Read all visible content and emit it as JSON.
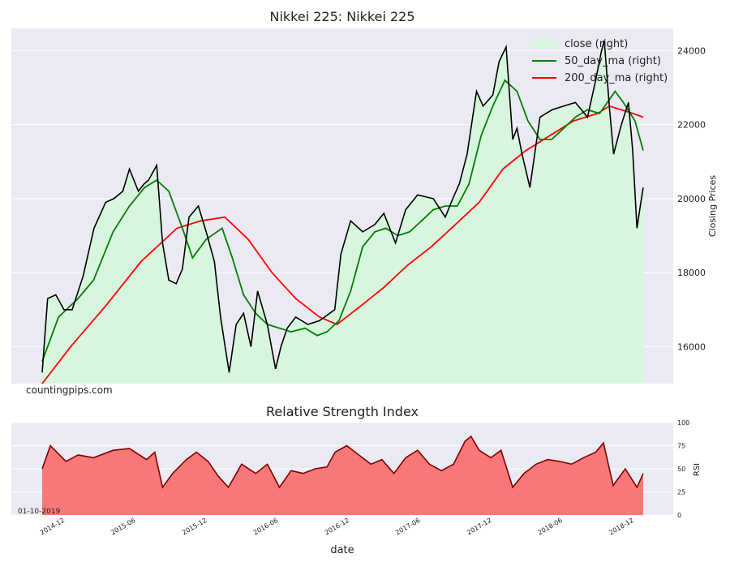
{
  "chart_data": [
    {
      "type": "line",
      "title": "Nikkei 225: Nikkei 225",
      "ylabel": "Closing Prices",
      "y_axis_side": "right",
      "ylim": [
        15000,
        24600
      ],
      "yticks": [
        16000,
        18000,
        20000,
        22000,
        24000
      ],
      "grid": true,
      "legend_placement": "top-right",
      "watermark": "countingpips.com",
      "x_range": [
        "2014-10-20",
        "2019-01-10"
      ],
      "series": [
        {
          "name": "close (right)",
          "style": "area",
          "color": "#000000",
          "fill": "#d8f5de",
          "x": [
            "2014-10-20",
            "2014-11-03",
            "2014-11-24",
            "2014-12-15",
            "2015-01-05",
            "2015-02-02",
            "2015-03-02",
            "2015-04-01",
            "2015-04-22",
            "2015-05-15",
            "2015-06-01",
            "2015-06-24",
            "2015-07-09",
            "2015-07-20",
            "2015-08-10",
            "2015-08-25",
            "2015-09-10",
            "2015-09-29",
            "2015-10-15",
            "2015-11-01",
            "2015-11-25",
            "2015-12-15",
            "2016-01-05",
            "2016-01-21",
            "2016-02-12",
            "2016-03-01",
            "2016-03-20",
            "2016-04-08",
            "2016-04-25",
            "2016-05-20",
            "2016-06-10",
            "2016-06-24",
            "2016-07-10",
            "2016-08-01",
            "2016-09-01",
            "2016-10-01",
            "2016-11-09",
            "2016-11-25",
            "2016-12-20",
            "2017-01-20",
            "2017-02-20",
            "2017-03-15",
            "2017-04-14",
            "2017-05-10",
            "2017-06-10",
            "2017-07-20",
            "2017-08-20",
            "2017-09-08",
            "2017-09-25",
            "2017-10-15",
            "2017-11-08",
            "2017-11-25",
            "2017-12-20",
            "2018-01-05",
            "2018-01-23",
            "2018-02-09",
            "2018-02-20",
            "2018-03-05",
            "2018-03-25",
            "2018-04-20",
            "2018-05-21",
            "2018-06-20",
            "2018-07-20",
            "2018-08-20",
            "2018-09-10",
            "2018-09-25",
            "2018-10-02",
            "2018-10-15",
            "2018-10-26",
            "2018-11-15",
            "2018-12-03",
            "2018-12-14",
            "2018-12-25",
            "2019-01-04",
            "2019-01-10"
          ],
          "y": [
            15300,
            17300,
            17400,
            17000,
            17000,
            17900,
            19200,
            19900,
            20000,
            20200,
            20800,
            20200,
            20400,
            20500,
            20900,
            18800,
            17800,
            17700,
            18100,
            19500,
            19800,
            19100,
            18300,
            16800,
            15300,
            16600,
            16900,
            16000,
            17500,
            16600,
            15400,
            16000,
            16500,
            16800,
            16600,
            16700,
            17000,
            18500,
            19400,
            19100,
            19300,
            19600,
            18800,
            19700,
            20100,
            20000,
            19500,
            20000,
            20400,
            21200,
            22900,
            22500,
            22800,
            23700,
            24100,
            21600,
            21900,
            21200,
            20300,
            22200,
            22400,
            22500,
            22600,
            22200,
            23200,
            24000,
            24270,
            22500,
            21200,
            22000,
            22600,
            21300,
            19200,
            19900,
            20300
          ]
        },
        {
          "name": "50_day_ma (right)",
          "style": "line",
          "color": "#008000",
          "x": [
            "2014-10-20",
            "2014-12-01",
            "2015-01-20",
            "2015-03-01",
            "2015-04-20",
            "2015-06-01",
            "2015-07-10",
            "2015-08-10",
            "2015-09-10",
            "2015-10-15",
            "2015-11-10",
            "2015-12-15",
            "2016-01-25",
            "2016-02-20",
            "2016-03-20",
            "2016-04-20",
            "2016-05-20",
            "2016-06-20",
            "2016-07-20",
            "2016-08-25",
            "2016-09-25",
            "2016-10-20",
            "2016-11-20",
            "2016-12-20",
            "2017-01-20",
            "2017-02-20",
            "2017-03-20",
            "2017-04-20",
            "2017-05-20",
            "2017-06-20",
            "2017-07-20",
            "2017-08-20",
            "2017-09-20",
            "2017-10-20",
            "2017-11-20",
            "2017-12-20",
            "2018-01-20",
            "2018-02-20",
            "2018-03-20",
            "2018-04-20",
            "2018-05-20",
            "2018-06-20",
            "2018-07-20",
            "2018-08-20",
            "2018-09-20",
            "2018-10-10",
            "2018-10-30",
            "2018-11-20",
            "2018-12-20",
            "2019-01-10"
          ],
          "y": [
            15600,
            16800,
            17300,
            17800,
            19100,
            19800,
            20300,
            20500,
            20200,
            19200,
            18400,
            18900,
            19200,
            18400,
            17400,
            16900,
            16600,
            16500,
            16400,
            16500,
            16300,
            16400,
            16700,
            17500,
            18700,
            19100,
            19200,
            19000,
            19100,
            19400,
            19700,
            19800,
            19800,
            20400,
            21700,
            22500,
            23200,
            22900,
            22100,
            21600,
            21600,
            21900,
            22200,
            22400,
            22300,
            22600,
            22900,
            22600,
            22100,
            21300
          ]
        },
        {
          "name": "200_day_ma (right)",
          "style": "line",
          "color": "#ff0000",
          "x": [
            "2014-10-20",
            "2015-01-01",
            "2015-04-01",
            "2015-07-01",
            "2015-10-01",
            "2015-12-01",
            "2016-02-01",
            "2016-04-01",
            "2016-06-01",
            "2016-08-01",
            "2016-10-01",
            "2016-11-15",
            "2017-01-15",
            "2017-03-15",
            "2017-05-15",
            "2017-07-15",
            "2017-09-15",
            "2017-11-15",
            "2018-01-15",
            "2018-03-15",
            "2018-05-15",
            "2018-07-15",
            "2018-09-15",
            "2018-10-15",
            "2018-11-15",
            "2018-12-15",
            "2019-01-10"
          ],
          "y": [
            15000,
            16000,
            17100,
            18300,
            19200,
            19400,
            19500,
            18900,
            18000,
            17300,
            16800,
            16600,
            17100,
            17600,
            18200,
            18700,
            19300,
            19900,
            20800,
            21300,
            21700,
            22100,
            22300,
            22500,
            22400,
            22300,
            22200
          ]
        }
      ]
    },
    {
      "type": "area",
      "title": "Relative Strength Index",
      "ylabel": "RSI",
      "y_axis_side": "right",
      "ylim": [
        0,
        100
      ],
      "yticks": [
        0,
        25,
        50,
        75,
        100
      ],
      "xlabel": "date",
      "x_tick_labels": [
        "2014-12",
        "2015-06",
        "2015-12",
        "2016-06",
        "2016-12",
        "2017-06",
        "2017-12",
        "2018-06",
        "2018-12"
      ],
      "annotation": "01-10-2019",
      "grid": true,
      "series": [
        {
          "style": "area",
          "color": "#800000",
          "fill": "#f87878",
          "x": [
            "2014-10-20",
            "2014-11-10",
            "2014-12-20",
            "2015-01-20",
            "2015-03-01",
            "2015-04-20",
            "2015-06-01",
            "2015-07-15",
            "2015-08-05",
            "2015-08-25",
            "2015-09-20",
            "2015-10-25",
            "2015-11-20",
            "2015-12-20",
            "2016-01-15",
            "2016-02-10",
            "2016-03-15",
            "2016-04-20",
            "2016-05-20",
            "2016-06-20",
            "2016-07-20",
            "2016-08-20",
            "2016-09-20",
            "2016-10-20",
            "2016-11-10",
            "2016-12-10",
            "2017-01-10",
            "2017-02-10",
            "2017-03-10",
            "2017-04-10",
            "2017-05-10",
            "2017-06-10",
            "2017-07-10",
            "2017-08-10",
            "2017-09-10",
            "2017-10-10",
            "2017-10-25",
            "2017-11-15",
            "2017-12-15",
            "2018-01-10",
            "2018-02-09",
            "2018-03-10",
            "2018-04-10",
            "2018-05-10",
            "2018-06-10",
            "2018-07-10",
            "2018-08-10",
            "2018-09-10",
            "2018-09-30",
            "2018-10-25",
            "2018-11-25",
            "2018-12-25",
            "2019-01-10"
          ],
          "y": [
            50,
            75,
            58,
            65,
            62,
            70,
            72,
            60,
            68,
            30,
            45,
            60,
            68,
            58,
            42,
            30,
            55,
            45,
            55,
            30,
            48,
            45,
            50,
            52,
            68,
            75,
            65,
            55,
            60,
            45,
            62,
            70,
            55,
            48,
            55,
            80,
            85,
            70,
            62,
            70,
            30,
            45,
            55,
            60,
            58,
            55,
            62,
            68,
            78,
            32,
            50,
            30,
            45
          ]
        }
      ]
    }
  ]
}
